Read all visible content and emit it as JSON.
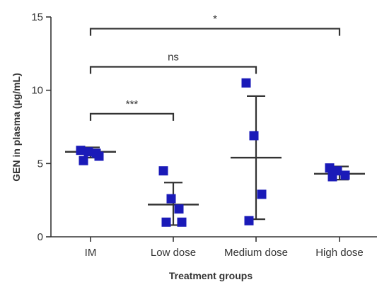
{
  "chart_data": {
    "type": "scatter",
    "xlabel": "Treatment groups",
    "ylabel": "GEN in plasma (µg/mL)",
    "ylim": [
      0,
      15
    ],
    "yticks": [
      "0",
      "5",
      "10",
      "15"
    ],
    "categories": [
      "IM",
      "Low dose",
      "Medium dose",
      "High dose"
    ],
    "groups": [
      {
        "category": "IM",
        "points": [
          5.9,
          5.8,
          5.7,
          5.2,
          5.5
        ],
        "mean": 5.8,
        "error_upper": 6.1,
        "error_lower": 5.4
      },
      {
        "category": "Low dose",
        "points": [
          4.5,
          2.6,
          1.9,
          1.0,
          1.0
        ],
        "mean": 2.2,
        "error_upper": 3.7,
        "error_lower": 0.8
      },
      {
        "category": "Medium dose",
        "points": [
          10.5,
          6.9,
          2.9,
          1.1
        ],
        "mean": 5.4,
        "error_upper": 9.6,
        "error_lower": 1.2
      },
      {
        "category": "High dose",
        "points": [
          4.7,
          4.5,
          4.2,
          4.1
        ],
        "mean": 4.3,
        "error_upper": 4.8,
        "error_lower": 3.9
      }
    ],
    "comparisons": [
      {
        "from": "IM",
        "to": "Low dose",
        "label": "***",
        "y": 8.4
      },
      {
        "from": "IM",
        "to": "Medium dose",
        "label": "ns",
        "y": 11.6
      },
      {
        "from": "IM",
        "to": "High dose",
        "label": "*",
        "y": 14.2
      }
    ],
    "marker_color": "#1a1ab8",
    "line_color": "#333333",
    "grid": false
  }
}
